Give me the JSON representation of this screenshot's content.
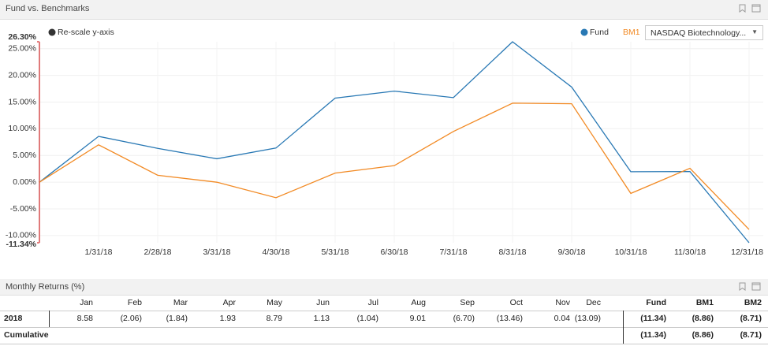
{
  "chart_panel": {
    "title": "Fund vs. Benchmarks"
  },
  "chart_data": {
    "type": "line",
    "rescale_label": "Re-scale y-axis",
    "benchmark_select": "NASDAQ Biotechnology...",
    "categories": [
      null,
      "1/31/18",
      "2/28/18",
      "3/31/18",
      "4/30/18",
      "5/31/18",
      "6/30/18",
      "7/31/18",
      "8/31/18",
      "9/30/18",
      "10/31/18",
      "11/30/18",
      "12/31/18"
    ],
    "series": [
      {
        "name": "Fund",
        "color": "#2878b4",
        "values": [
          0,
          8.58,
          6.34,
          4.39,
          6.4,
          15.75,
          17.06,
          15.84,
          26.3,
          17.82,
          1.96,
          2.0,
          -11.34
        ]
      },
      {
        "name": "BM1",
        "color": "#f28a24",
        "values": [
          0,
          7.0,
          1.3,
          0.0,
          -2.9,
          1.7,
          3.1,
          9.5,
          14.8,
          14.7,
          -2.1,
          2.6,
          -8.86
        ]
      }
    ],
    "ylim": [
      -11.34,
      26.3
    ],
    "ylim_labels": [
      "-11.34%",
      "26.30%"
    ],
    "range_color": "#cc0000",
    "yticks": [
      {
        "value": -10,
        "label": "-10.00%"
      },
      {
        "value": -5,
        "label": "-5.00%"
      },
      {
        "value": 0,
        "label": "0.00%"
      },
      {
        "value": 5,
        "label": "5.00%"
      },
      {
        "value": 10,
        "label": "10.00%"
      },
      {
        "value": 15,
        "label": "15.00%"
      },
      {
        "value": 20,
        "label": "20.00%"
      },
      {
        "value": 25,
        "label": "25.00%"
      }
    ],
    "grid": true
  },
  "table_panel": {
    "title": "Monthly Returns (%)"
  },
  "table": {
    "columns": [
      "Jan",
      "Feb",
      "Mar",
      "Apr",
      "May",
      "Jun",
      "Jul",
      "Aug",
      "Sep",
      "Oct",
      "Nov",
      "Dec",
      "Fund",
      "BM1",
      "BM2"
    ],
    "rows": [
      {
        "label": "2018",
        "months": [
          "8.58",
          "(2.06)",
          "(1.84)",
          "1.93",
          "8.79",
          "1.13",
          "(1.04)",
          "9.01",
          "(6.70)",
          "(13.46)",
          "0.04",
          "(13.09)"
        ],
        "totals": [
          "(11.34)",
          "(8.86)",
          "(8.71)"
        ]
      },
      {
        "label": "Cumulative",
        "totals": [
          "(11.34)",
          "(8.86)",
          "(8.71)"
        ]
      }
    ]
  }
}
